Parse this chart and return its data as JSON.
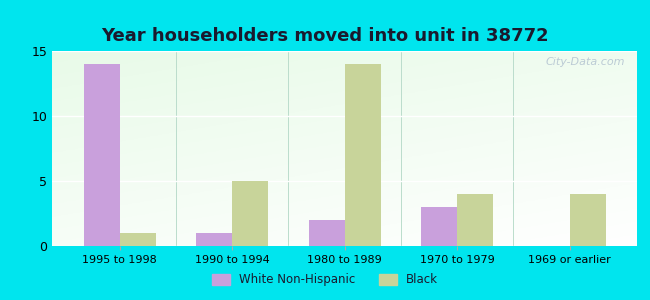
{
  "title": "Year householders moved into unit in 38772",
  "categories": [
    "1995 to 1998",
    "1990 to 1994",
    "1980 to 1989",
    "1970 to 1979",
    "1969 or earlier"
  ],
  "white_values": [
    14,
    1,
    2,
    3,
    0
  ],
  "black_values": [
    1,
    5,
    14,
    4,
    4
  ],
  "white_color": "#c9a0dc",
  "black_color": "#c8d49a",
  "ylim": [
    0,
    15
  ],
  "yticks": [
    0,
    5,
    10,
    15
  ],
  "bg_outer": "#00e5ee",
  "title_fontsize": 13,
  "watermark": "City-Data.com",
  "bar_width": 0.32,
  "legend_labels": [
    "White Non-Hispanic",
    "Black"
  ],
  "title_color": "#1a1a2e"
}
